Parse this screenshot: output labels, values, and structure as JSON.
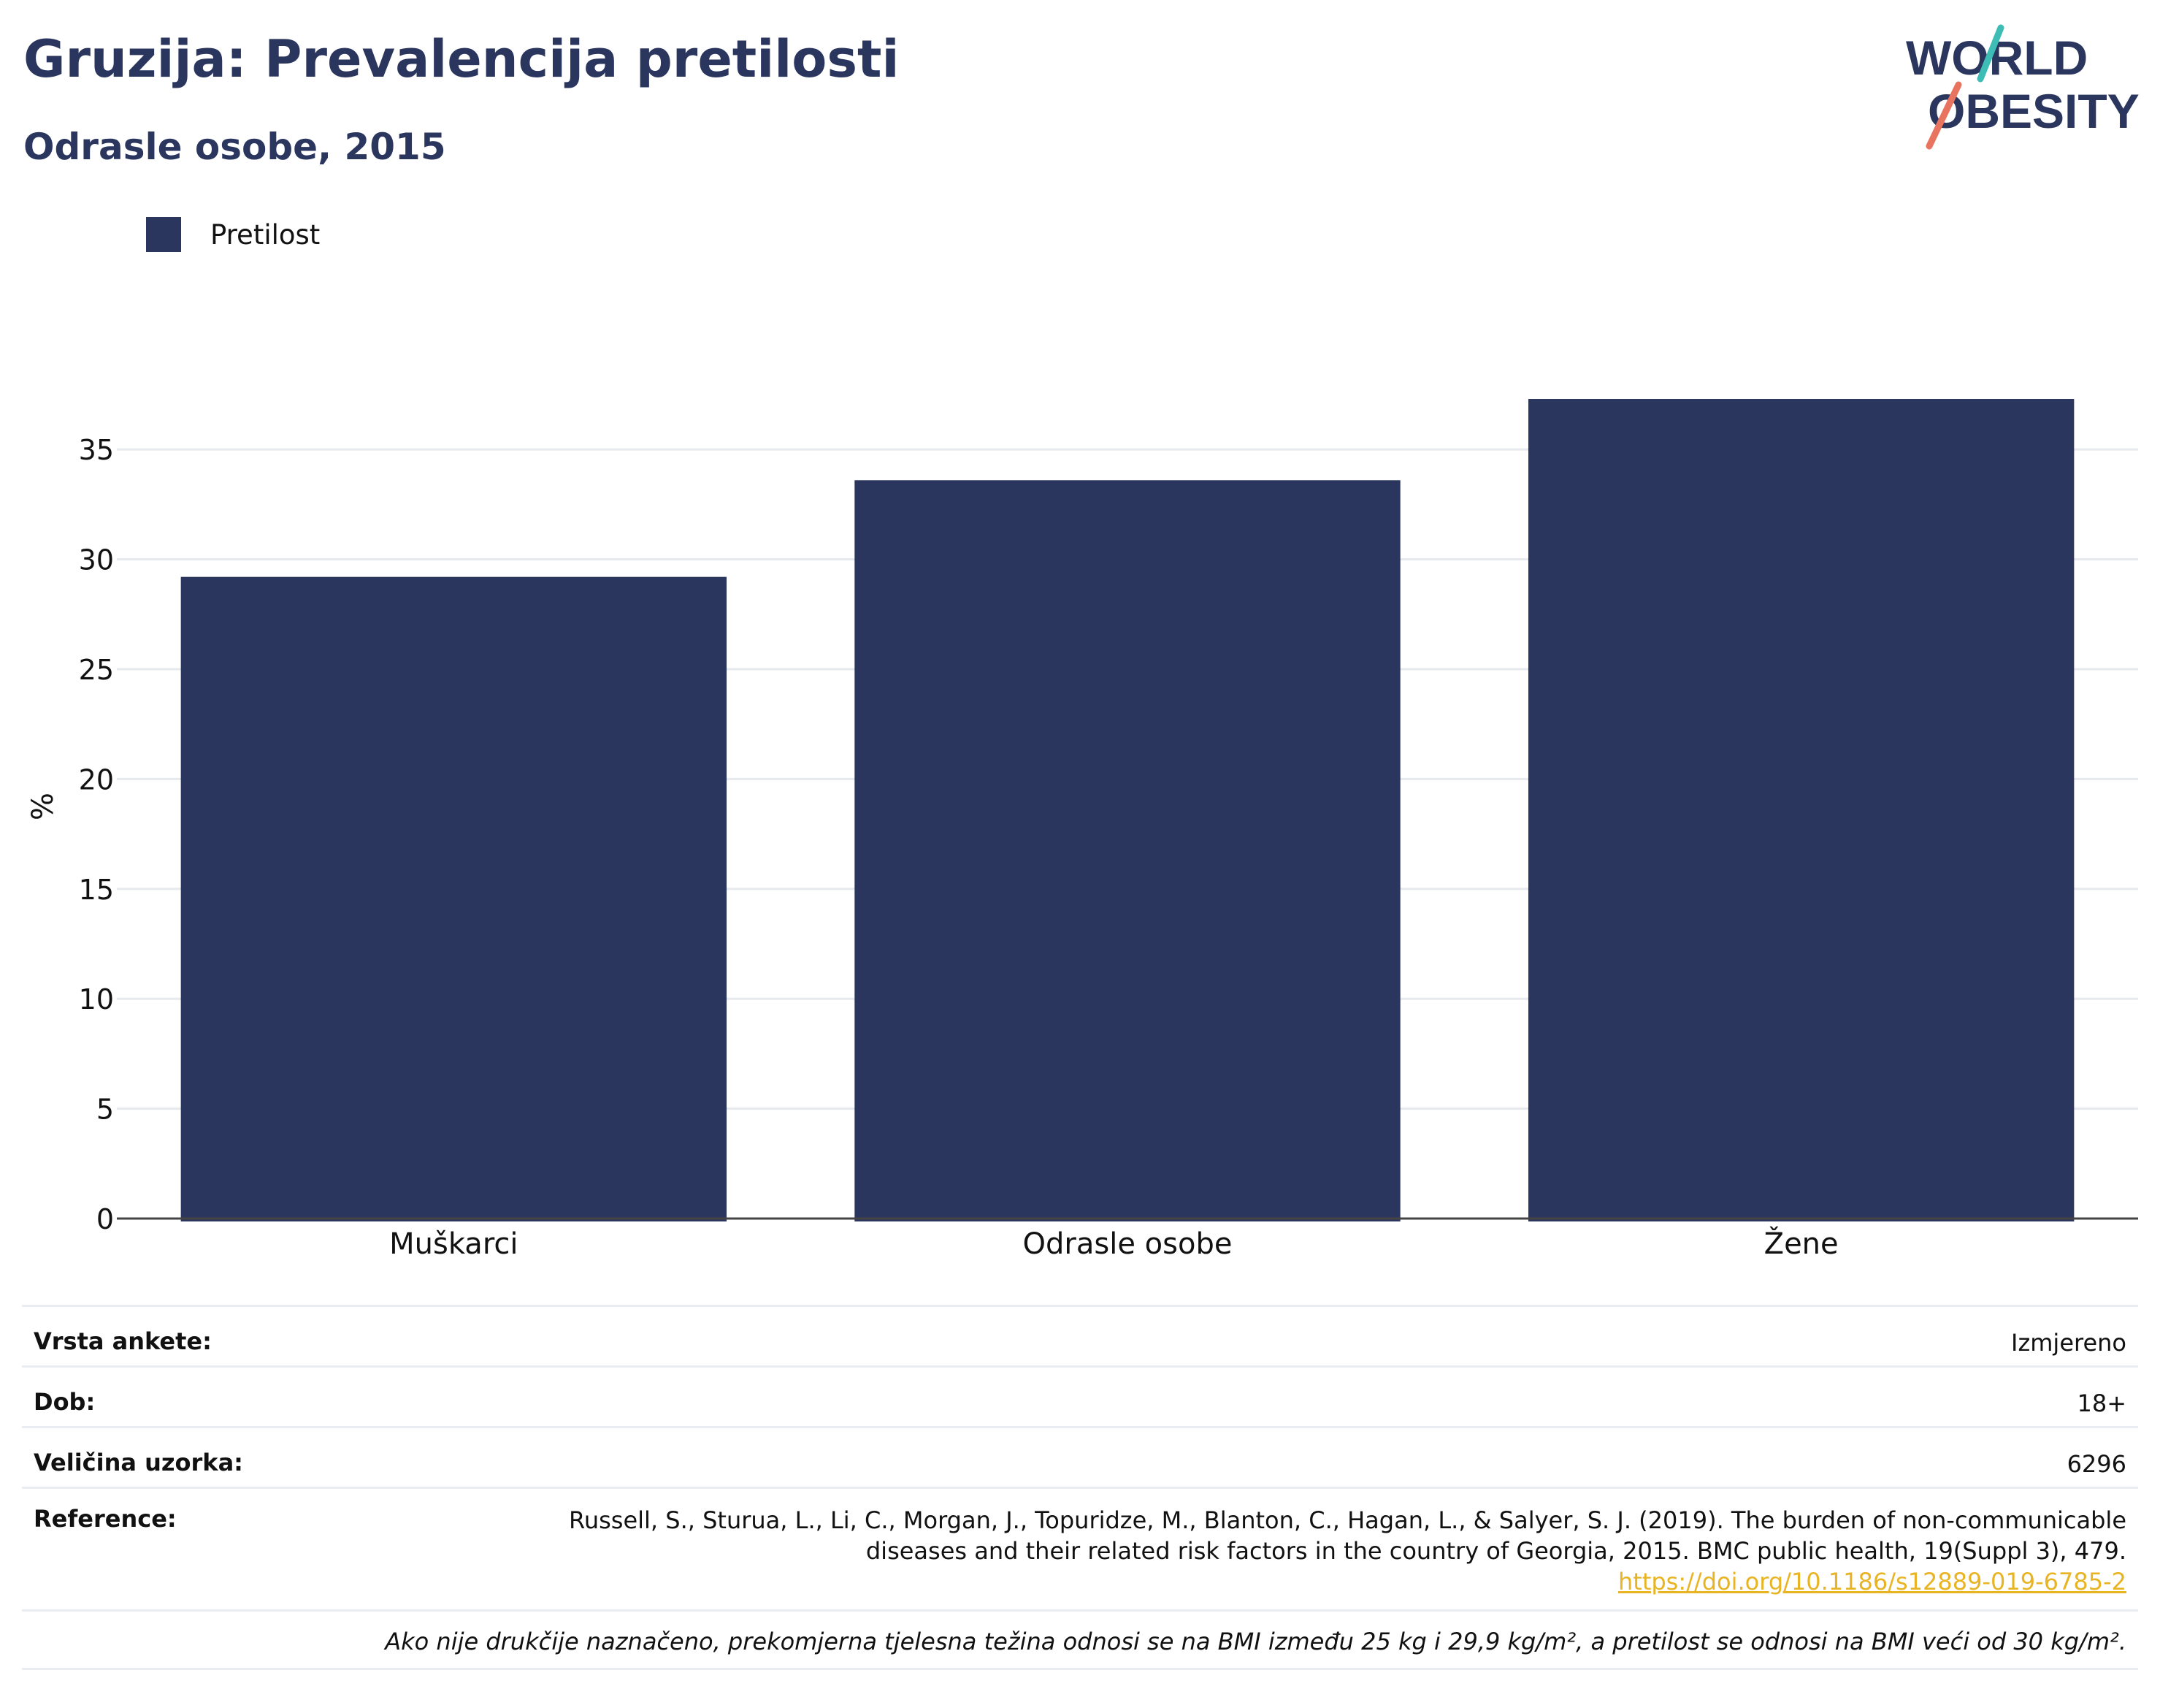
{
  "header": {
    "title": "Gruzija: Prevalencija pretilosti",
    "subtitle": "Odrasle osobe, 2015"
  },
  "logo": {
    "line1": "WORLD",
    "line2": "OBESITY"
  },
  "legend": {
    "label": "Pretilost",
    "color": "#2b365f"
  },
  "chart_data": {
    "type": "bar",
    "categories": [
      "Muškarci",
      "Odrasle osobe",
      "Žene"
    ],
    "series": [
      {
        "name": "Pretilost",
        "values": [
          29.2,
          33.6,
          37.3
        ]
      }
    ],
    "ylabel": "%",
    "xlabel": "",
    "ylim": [
      0,
      37.5
    ],
    "yticks": [
      0,
      5,
      10,
      15,
      20,
      25,
      30,
      35
    ],
    "grid": true,
    "legend_position": "top-left",
    "bar_color": "#2b365f"
  },
  "meta": {
    "survey_key": "Vrsta ankete:",
    "survey_val": "Izmjereno",
    "age_key": "Dob:",
    "age_val": "18+",
    "sample_key": "Veličina uzorka:",
    "sample_val": "6296",
    "ref_key": "Reference:",
    "ref_line1": "Russell, S., Sturua, L., Li, C., Morgan, J., Topuridze, M., Blanton, C., Hagan, L., & Salyer, S. J. (2019). The burden of non-communicable",
    "ref_line2": "diseases and their related risk factors in the country of Georgia, 2015. BMC public health, 19(Suppl 3), 479.",
    "ref_link": "https://doi.org/10.1186/s12889-019-6785-2",
    "note": "Ako nije drukčije naznačeno, prekomjerna tjelesna težina odnosi se na BMI između 25 kg i 29,9 kg/m², a pretilost se odnosi na BMI veći od 30 kg/m²."
  }
}
